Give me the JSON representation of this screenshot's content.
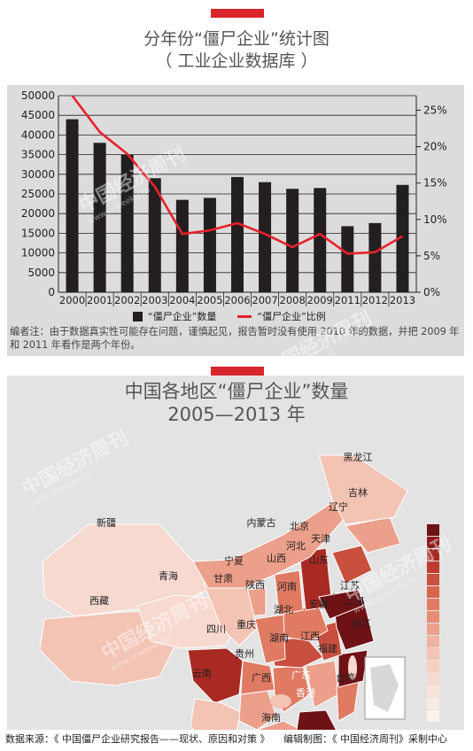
{
  "header": {
    "title_line1": "分年份“僵尸企业”统计图",
    "title_line2": "（ 工业企业数据库 ）"
  },
  "colors": {
    "accent": "#d9252c",
    "bar": "#231f20",
    "line": "#e8212a"
  },
  "chart_data": [
    {
      "type": "bar",
      "title": "分年份“僵尸企业”统计图",
      "subtitle": "（ 工业企业数据库 ）",
      "categories": [
        "2000",
        "2001",
        "2002",
        "2003",
        "2004",
        "2005",
        "2006",
        "2007",
        "2008",
        "2009",
        "2011",
        "2012",
        "2013"
      ],
      "series": [
        {
          "name": "“僵尸企业”数量",
          "type": "bar",
          "axis": "left",
          "values": [
            44000,
            38000,
            35000,
            29000,
            23500,
            24000,
            29300,
            28000,
            26300,
            26500,
            16800,
            17600,
            27300
          ]
        },
        {
          "name": "“僵尸企业”比例",
          "type": "line",
          "axis": "right",
          "unit": "%",
          "values": [
            27.0,
            22.0,
            19.0,
            14.5,
            8.0,
            8.5,
            9.5,
            8.0,
            6.2,
            8.0,
            5.3,
            5.5,
            7.7
          ]
        }
      ],
      "yleft": {
        "ticks": [
          "0",
          "5000",
          "10000",
          "15000",
          "20000",
          "25000",
          "30000",
          "35000",
          "40000",
          "45000",
          "50000"
        ],
        "range": [
          0,
          50000
        ]
      },
      "yright": {
        "ticks": [
          "0%",
          "5%",
          "10%",
          "15%",
          "20%",
          "25%"
        ],
        "range": [
          0,
          27
        ]
      },
      "grid": true,
      "legend": "bottom",
      "note": "编者注：由于数据真实性可能存在问题，谨慎起见，报告暂时没有使用 2010 年的数据，并把 2009 年和 2011 年看作是两个年份。"
    },
    {
      "type": "choropleth-map",
      "title_line1": "中国各地区“僵尸企业”数量",
      "title_line2": "2005—2013 年",
      "regions": [
        "黑龙江",
        "吉林",
        "辽宁",
        "内蒙古",
        "北京",
        "天津",
        "河北",
        "山西",
        "山东",
        "宁夏",
        "甘肃",
        "陕西",
        "河南",
        "江苏",
        "上海",
        "安徽",
        "湖北",
        "新疆",
        "青海",
        "西藏",
        "四川",
        "重庆",
        "湖南",
        "江西",
        "浙江",
        "福建",
        "贵州",
        "云南",
        "广西",
        "广东",
        "香港",
        "台湾",
        "海南"
      ],
      "legend_scale": "darker = more"
    }
  ],
  "footer": {
    "source": "数据来源：《 中国僵尸企业研究报告——现状、原因和对策 》",
    "credit": "编辑制图：《 中国经济周刊》采制中心"
  },
  "watermark": {
    "text": "中国经济周刊",
    "url": "www.ceweekly.cn"
  }
}
